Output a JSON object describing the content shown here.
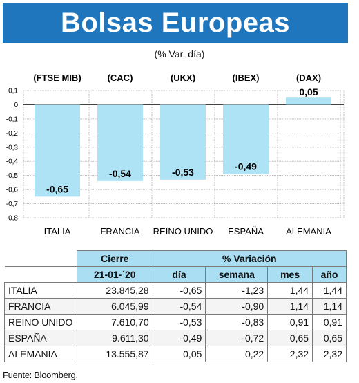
{
  "header": {
    "title": "Bolsas Europeas",
    "subtitle": "(% Var. día)",
    "bg_color": "#1f76bd"
  },
  "chart_data": {
    "type": "bar",
    "categories": [
      "ITALIA",
      "FRANCIA",
      "REINO UNIDO",
      "ESPAÑA",
      "ALEMANIA"
    ],
    "index_labels": [
      "(FTSE MIB)",
      "(CAC)",
      "(UKX)",
      "(IBEX)",
      "(DAX)"
    ],
    "values": [
      -0.65,
      -0.54,
      -0.53,
      -0.49,
      0.05
    ],
    "value_labels": [
      "-0,65",
      "-0,54",
      "-0,53",
      "-0,49",
      "0,05"
    ],
    "ylim": [
      -0.8,
      0.1
    ],
    "yticks": [
      0.1,
      0,
      -0.1,
      -0.2,
      -0.3,
      -0.4,
      -0.5,
      -0.6,
      -0.7,
      -0.8
    ],
    "ytick_labels": [
      "0,1",
      "0",
      "-0,1",
      "-0,2",
      "-0,3",
      "-0,4",
      "-0,5",
      "-0,6",
      "-0,7",
      "-0,8"
    ],
    "grid": true,
    "bar_color": "#aee3f6",
    "grid_color": "#8a8a8a"
  },
  "table": {
    "header_row1": {
      "cierre": "Cierre",
      "variacion": "% Variación"
    },
    "header_row2": {
      "date": "21-01-´20",
      "dia": "día",
      "semana": "semana",
      "mes": "mes",
      "ano": "año"
    },
    "header_color": "#a9def3",
    "rows": [
      {
        "pais": "ITALIA",
        "cierre": "23.845,28",
        "dia": "-0,65",
        "semana": "-1,23",
        "mes": "1,44",
        "ano": "1,44"
      },
      {
        "pais": "FRANCIA",
        "cierre": "6.045,99",
        "dia": "-0,54",
        "semana": "-0,90",
        "mes": "1,14",
        "ano": "1,14"
      },
      {
        "pais": "REINO UNIDO",
        "cierre": "7.610,70",
        "dia": "-0,53",
        "semana": "-0,83",
        "mes": "0,91",
        "ano": "0,91"
      },
      {
        "pais": "ESPAÑA",
        "cierre": "9.611,30",
        "dia": "-0,49",
        "semana": "-0,72",
        "mes": "0,65",
        "ano": "0,65"
      },
      {
        "pais": "ALEMANIA",
        "cierre": "13.555,87",
        "dia": "0,05",
        "semana": "0,22",
        "mes": "2,32",
        "ano": "2,32"
      }
    ]
  },
  "source": "Fuente: Bloomberg."
}
